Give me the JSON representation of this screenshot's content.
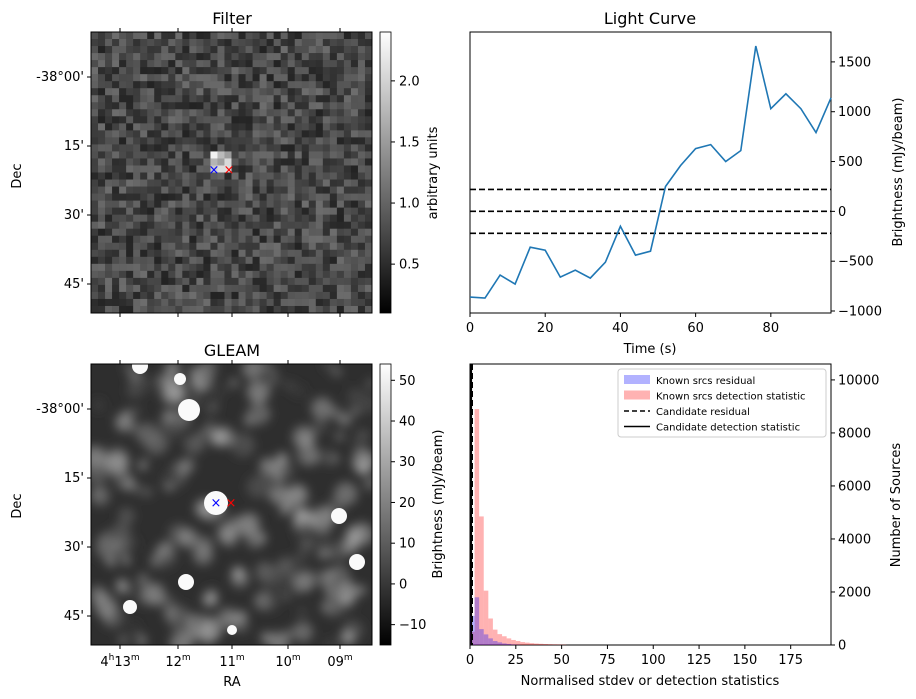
{
  "chart_data": [
    {
      "type": "heatmap",
      "title": "Filter",
      "xlabel": "",
      "ylabel": "Dec",
      "ytick_labels": [
        "-38°00'",
        "15'",
        "30'",
        "45'"
      ],
      "colorbar": {
        "label": "arbitrary units",
        "range": [
          0.1,
          2.4
        ],
        "tick_values": [
          0.5,
          1.0,
          1.5,
          2.0
        ],
        "tick_labels": [
          "0.5",
          "1.0",
          "1.5",
          "2.0"
        ]
      },
      "markers": [
        {
          "name": "blue-cross",
          "label": "×",
          "color": "#0000ff"
        },
        {
          "name": "red-cross",
          "label": "×",
          "color": "#ff0000"
        }
      ]
    },
    {
      "type": "line",
      "title": "Light Curve",
      "xlabel": "Time (s)",
      "ylabel": "Brightness (mJy/beam)",
      "xlim": [
        0,
        96
      ],
      "ylim": [
        -1020,
        1800
      ],
      "xticks": [
        0,
        20,
        40,
        60,
        80
      ],
      "yticks": [
        -1000,
        -500,
        0,
        500,
        1000,
        1500
      ],
      "series": [
        {
          "name": "light curve",
          "color": "#1f77b4",
          "x": [
            0,
            4,
            8,
            12,
            16,
            20,
            24,
            28,
            32,
            36,
            40,
            44,
            48,
            52,
            56,
            60,
            64,
            68,
            72,
            76,
            80,
            84,
            88,
            92,
            96
          ],
          "y": [
            -860,
            -870,
            -640,
            -730,
            -360,
            -390,
            -660,
            -590,
            -670,
            -510,
            -150,
            -440,
            -400,
            250,
            460,
            630,
            670,
            500,
            610,
            1660,
            1030,
            1180,
            1030,
            790,
            1140
          ]
        }
      ],
      "hlines": [
        220,
        0,
        -220
      ]
    },
    {
      "type": "heatmap",
      "title": "GLEAM",
      "xlabel": "RA",
      "ylabel": "Dec",
      "xtick_labels": [
        "4h13m",
        "12m",
        "11m",
        "10m",
        "09m"
      ],
      "ytick_labels": [
        "-38°00'",
        "15'",
        "30'",
        "45'"
      ],
      "colorbar": {
        "label": "Brightness (mJy/beam)",
        "range": [
          -15,
          54
        ],
        "tick_values": [
          -10,
          0,
          10,
          20,
          30,
          40,
          50
        ],
        "tick_labels": [
          "−10",
          "0",
          "10",
          "20",
          "30",
          "40",
          "50"
        ]
      },
      "markers": [
        {
          "name": "blue-cross",
          "label": "×",
          "color": "#0000ff"
        },
        {
          "name": "red-cross",
          "label": "×",
          "color": "#ff0000"
        }
      ]
    },
    {
      "type": "bar",
      "title": "",
      "xlabel": "Normalised stdev or detection statistics",
      "ylabel": "Number of Sources",
      "xlim": [
        0,
        197
      ],
      "ylim": [
        0,
        10600
      ],
      "xticks": [
        0,
        25,
        50,
        75,
        100,
        125,
        150,
        175
      ],
      "yticks": [
        0,
        2000,
        4000,
        6000,
        8000,
        10000
      ],
      "bin_width": 2.5,
      "series": [
        {
          "name": "Known srcs residual",
          "color": "#0000ff",
          "bin_starts": [
            0,
            2.5,
            5,
            7.5,
            10,
            12.5,
            15,
            17.5,
            20,
            22.5,
            25
          ],
          "counts": [
            1100,
            1800,
            600,
            400,
            250,
            150,
            100,
            60,
            40,
            20,
            10
          ]
        },
        {
          "name": "Known srcs detection statistic",
          "color": "#ff0000",
          "bin_starts": [
            0,
            2.5,
            5,
            7.5,
            10,
            12.5,
            15,
            17.5,
            20,
            22.5,
            25,
            27.5,
            30,
            32.5,
            35,
            37.5,
            40,
            42.5,
            45,
            47.5,
            50
          ],
          "counts": [
            500,
            8900,
            4850,
            2050,
            1000,
            580,
            410,
            330,
            250,
            190,
            150,
            110,
            90,
            70,
            55,
            45,
            35,
            28,
            22,
            18,
            15
          ]
        }
      ],
      "vlines": [
        {
          "name": "Candidate residual",
          "x": 1.2,
          "style": "dashed"
        },
        {
          "name": "Candidate detection statistic",
          "x": 0.7,
          "style": "solid"
        }
      ],
      "legend": {
        "position": "top-right",
        "entries": [
          {
            "label": "Known srcs residual",
            "kind": "patch",
            "color": "#0000ff"
          },
          {
            "label": "Known srcs detection statistic",
            "kind": "patch",
            "color": "#ff0000"
          },
          {
            "label": "Candidate residual",
            "kind": "dashed"
          },
          {
            "label": "Candidate detection statistic",
            "kind": "solid"
          }
        ]
      }
    }
  ]
}
